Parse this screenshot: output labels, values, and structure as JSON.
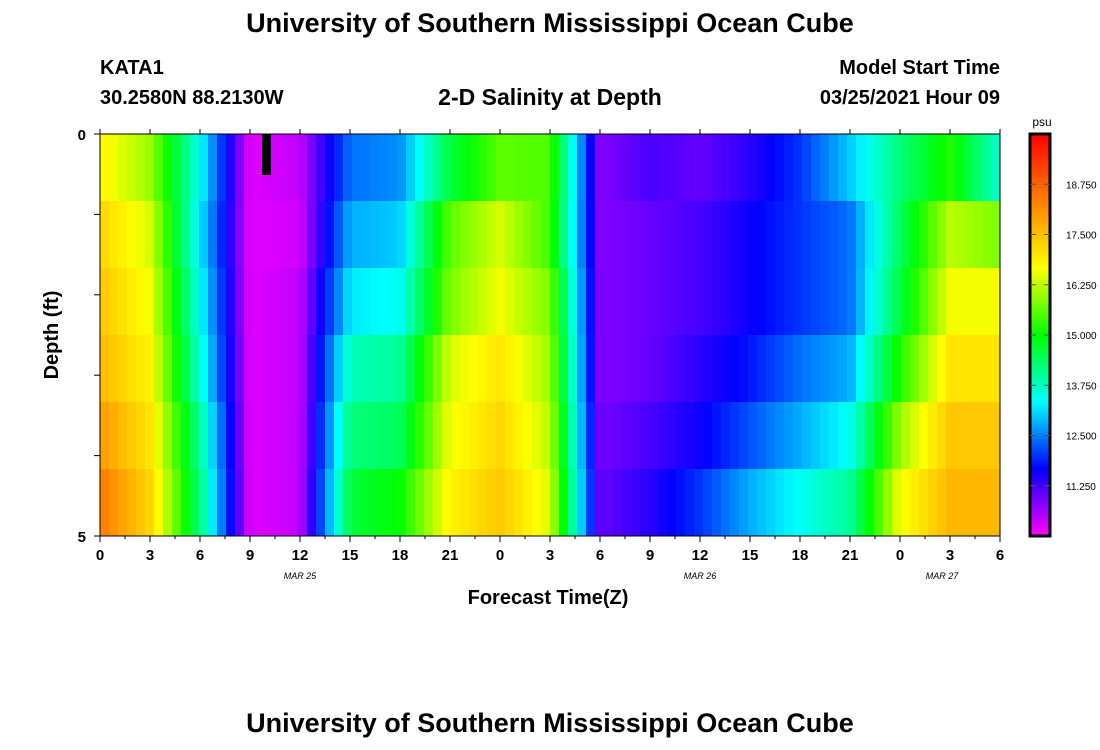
{
  "page": {
    "title_top": "University of Southern Mississippi Ocean Cube",
    "title_bottom": "University of Southern Mississippi Ocean Cube",
    "station_id": "KATA1",
    "station_coords": "30.2580N 88.2130W",
    "model_start_label": "Model Start Time",
    "model_start_value": "03/25/2021 Hour 09"
  },
  "chart_data": {
    "type": "heatmap",
    "title": "2-D Salinity at Depth",
    "xlabel": "Forecast Time(Z)",
    "ylabel": "Depth (ft)",
    "y_range": [
      0,
      5
    ],
    "y_tick_labels": [
      "0",
      "5"
    ],
    "x_tick_labels": [
      "0",
      "3",
      "6",
      "9",
      "12",
      "15",
      "18",
      "21",
      "0",
      "3",
      "6",
      "9",
      "12",
      "15",
      "18",
      "21",
      "0",
      "3",
      "6"
    ],
    "date_labels": [
      "MAR 25",
      "MAR 26",
      "MAR 27"
    ],
    "colorbar": {
      "unit": "psu",
      "range": [
        10.0,
        20.0
      ],
      "tick_labels": [
        "18.750",
        "17.500",
        "16.250",
        "15.000",
        "13.750",
        "12.500",
        "11.250"
      ],
      "colors": [
        "#ff00ff",
        "#8000ff",
        "#0000ff",
        "#0080ff",
        "#00ffff",
        "#00ff80",
        "#00ff00",
        "#80ff00",
        "#ffff00",
        "#ffc000",
        "#ff8000",
        "#ff4000",
        "#ff0000"
      ]
    },
    "hours": [
      0,
      3,
      6,
      9,
      12,
      15,
      18,
      21,
      24,
      27,
      30,
      33,
      36,
      39,
      42,
      45,
      48,
      51,
      54
    ],
    "series": [
      {
        "depth_row": 1,
        "values": [
          16.8,
          16.0,
          13.4,
          10.2,
          10.4,
          12.4,
          12.6,
          14.6,
          15.6,
          15.5,
          10.8,
          11.2,
          11.0,
          11.4,
          12.0,
          13.0,
          14.2,
          15.2,
          13.6
        ]
      },
      {
        "depth_row": 2,
        "values": [
          17.2,
          16.4,
          13.2,
          10.2,
          10.3,
          12.8,
          13.0,
          15.6,
          16.4,
          15.4,
          10.8,
          11.0,
          11.2,
          11.6,
          12.0,
          12.4,
          14.4,
          16.2,
          15.8
        ]
      },
      {
        "depth_row": 3,
        "values": [
          17.4,
          16.6,
          13.4,
          10.2,
          10.4,
          13.2,
          13.4,
          15.8,
          16.6,
          15.8,
          10.8,
          11.0,
          11.2,
          11.6,
          12.0,
          12.4,
          14.6,
          16.6,
          16.6
        ]
      },
      {
        "depth_row": 4,
        "values": [
          17.6,
          16.8,
          13.6,
          10.2,
          10.4,
          13.8,
          14.0,
          16.4,
          17.0,
          16.0,
          10.8,
          11.0,
          11.4,
          11.8,
          12.4,
          12.8,
          15.2,
          17.0,
          17.0
        ]
      },
      {
        "depth_row": 5,
        "values": [
          18.0,
          17.0,
          14.0,
          10.2,
          10.4,
          14.2,
          14.4,
          16.6,
          17.2,
          16.2,
          10.9,
          11.2,
          11.6,
          12.2,
          12.8,
          13.4,
          16.0,
          17.4,
          17.4
        ]
      },
      {
        "depth_row": 6,
        "values": [
          18.4,
          17.2,
          14.2,
          10.2,
          10.4,
          14.6,
          15.0,
          16.8,
          17.4,
          16.4,
          11.0,
          11.4,
          12.0,
          12.8,
          13.4,
          14.0,
          16.6,
          17.6,
          17.6
        ]
      }
    ]
  }
}
